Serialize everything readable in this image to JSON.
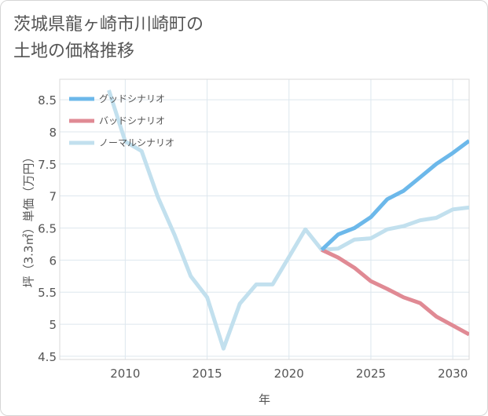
{
  "title": {
    "line1": "茨城県龍ヶ崎市川崎町の",
    "line2": "土地の価格推移"
  },
  "chart_data": {
    "type": "line",
    "xlabel": "年",
    "ylabel": "坪（3.3㎡）単価（万円）",
    "xlim": [
      2006,
      2031
    ],
    "ylim": [
      4.45,
      8.82
    ],
    "x_ticks": [
      "2010",
      "2015",
      "2020",
      "2025",
      "2030"
    ],
    "y_ticks": [
      "4.5",
      "5",
      "5.5",
      "6",
      "6.5",
      "7",
      "7.5",
      "8",
      "8.5"
    ],
    "grid": true,
    "legend_position": "top-left",
    "series": [
      {
        "name": "グッドシナリオ",
        "color": "#6cb8ea",
        "x": [
          2022,
          2023,
          2024,
          2025,
          2026,
          2027,
          2028,
          2029,
          2030,
          2031
        ],
        "y": [
          6.16,
          6.4,
          6.5,
          6.67,
          6.95,
          7.08,
          7.29,
          7.5,
          7.67,
          7.86
        ]
      },
      {
        "name": "バッドシナリオ",
        "color": "#e08a94",
        "x": [
          2022,
          2023,
          2024,
          2025,
          2026,
          2027,
          2028,
          2029,
          2030,
          2031
        ],
        "y": [
          6.16,
          6.04,
          5.88,
          5.67,
          5.55,
          5.42,
          5.33,
          5.12,
          4.98,
          4.84
        ]
      },
      {
        "name": "ノーマルシナリオ",
        "color": "#c2e0ee",
        "x": [
          2009,
          2010,
          2011,
          2012,
          2013,
          2014,
          2015,
          2016,
          2017,
          2018,
          2019,
          2020,
          2021,
          2022,
          2023,
          2024,
          2025,
          2026,
          2027,
          2028,
          2029,
          2030,
          2031
        ],
        "y": [
          8.65,
          7.85,
          7.7,
          6.98,
          6.4,
          5.75,
          5.42,
          4.62,
          5.32,
          5.62,
          5.62,
          6.05,
          6.48,
          6.16,
          6.18,
          6.32,
          6.34,
          6.48,
          6.53,
          6.62,
          6.66,
          6.79,
          6.82
        ]
      }
    ]
  }
}
